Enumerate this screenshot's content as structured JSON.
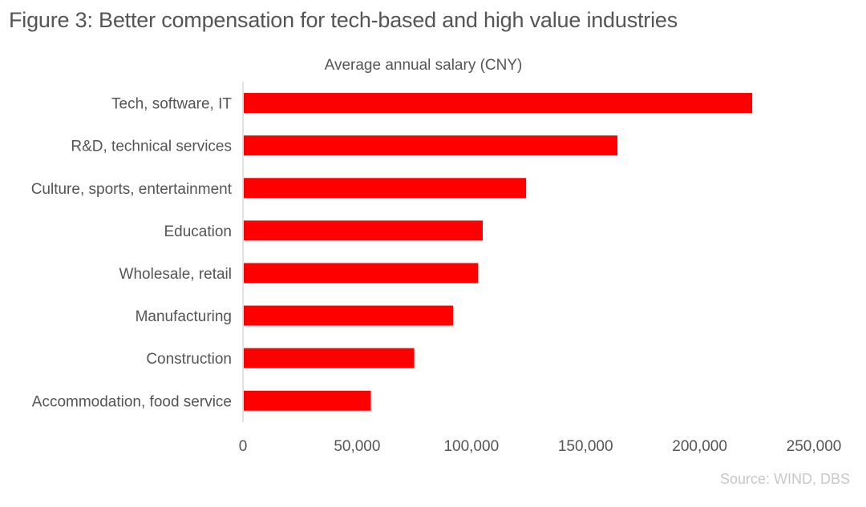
{
  "title": "Figure 3: Better compensation for tech-based and high value industries",
  "source": "Source: WIND, DBS",
  "chart_data": {
    "type": "bar",
    "orientation": "horizontal",
    "subtitle": "Average annual salary (CNY)",
    "categories": [
      "Tech, software, IT",
      "R&D, technical services",
      "Culture, sports, entertainment",
      "Education",
      "Wholesale, retail",
      "Manufacturing",
      "Construction",
      "Accommodation, food service"
    ],
    "values": [
      223000,
      164000,
      124000,
      105000,
      103000,
      92000,
      75000,
      56000
    ],
    "xlim": [
      0,
      250000
    ],
    "xticks": [
      0,
      50000,
      100000,
      150000,
      200000,
      250000
    ],
    "xtick_labels": [
      "0",
      "50,000",
      "100,000",
      "150,000",
      "200,000",
      "250,000"
    ],
    "bar_color": "#ff0000",
    "grid": false,
    "legend": "none"
  }
}
